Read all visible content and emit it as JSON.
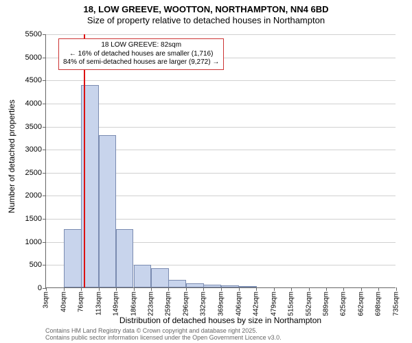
{
  "title": {
    "line1": "18, LOW GREEVE, WOOTTON, NORTHAMPTON, NN4 6BD",
    "line2": "Size of property relative to detached houses in Northampton"
  },
  "ylabel": "Number of detached properties",
  "xlabel": "Distribution of detached houses by size in Northampton",
  "chart": {
    "type": "histogram",
    "background_color": "#ffffff",
    "grid_color": "#d0d0d0",
    "axis_color": "#666666",
    "bar_fill": "#c8d4ec",
    "bar_stroke": "#7a8bb0",
    "marker_color": "#dd1111",
    "annot_border": "#cc3333",
    "ylim": [
      0,
      5500
    ],
    "ytick_step": 500,
    "x_ticks": [
      3,
      40,
      76,
      113,
      149,
      186,
      223,
      259,
      296,
      332,
      369,
      406,
      442,
      479,
      515,
      552,
      589,
      625,
      662,
      698,
      735
    ],
    "x_tick_unit": "sqm",
    "bars": [
      {
        "x": 40,
        "count": 1260
      },
      {
        "x": 76,
        "count": 4380
      },
      {
        "x": 113,
        "count": 3300
      },
      {
        "x": 149,
        "count": 1260
      },
      {
        "x": 186,
        "count": 490
      },
      {
        "x": 223,
        "count": 420
      },
      {
        "x": 259,
        "count": 160
      },
      {
        "x": 296,
        "count": 90
      },
      {
        "x": 332,
        "count": 60
      },
      {
        "x": 369,
        "count": 40
      },
      {
        "x": 406,
        "count": 30
      }
    ],
    "marker_x": 82,
    "annotation": {
      "line1": "18 LOW GREEVE: 82sqm",
      "line2": "← 16% of detached houses are smaller (1,716)",
      "line3": "84% of semi-detached houses are larger (9,272) →"
    }
  },
  "footer": {
    "line1": "Contains HM Land Registry data © Crown copyright and database right 2025.",
    "line2": "Contains public sector information licensed under the Open Government Licence v3.0."
  }
}
